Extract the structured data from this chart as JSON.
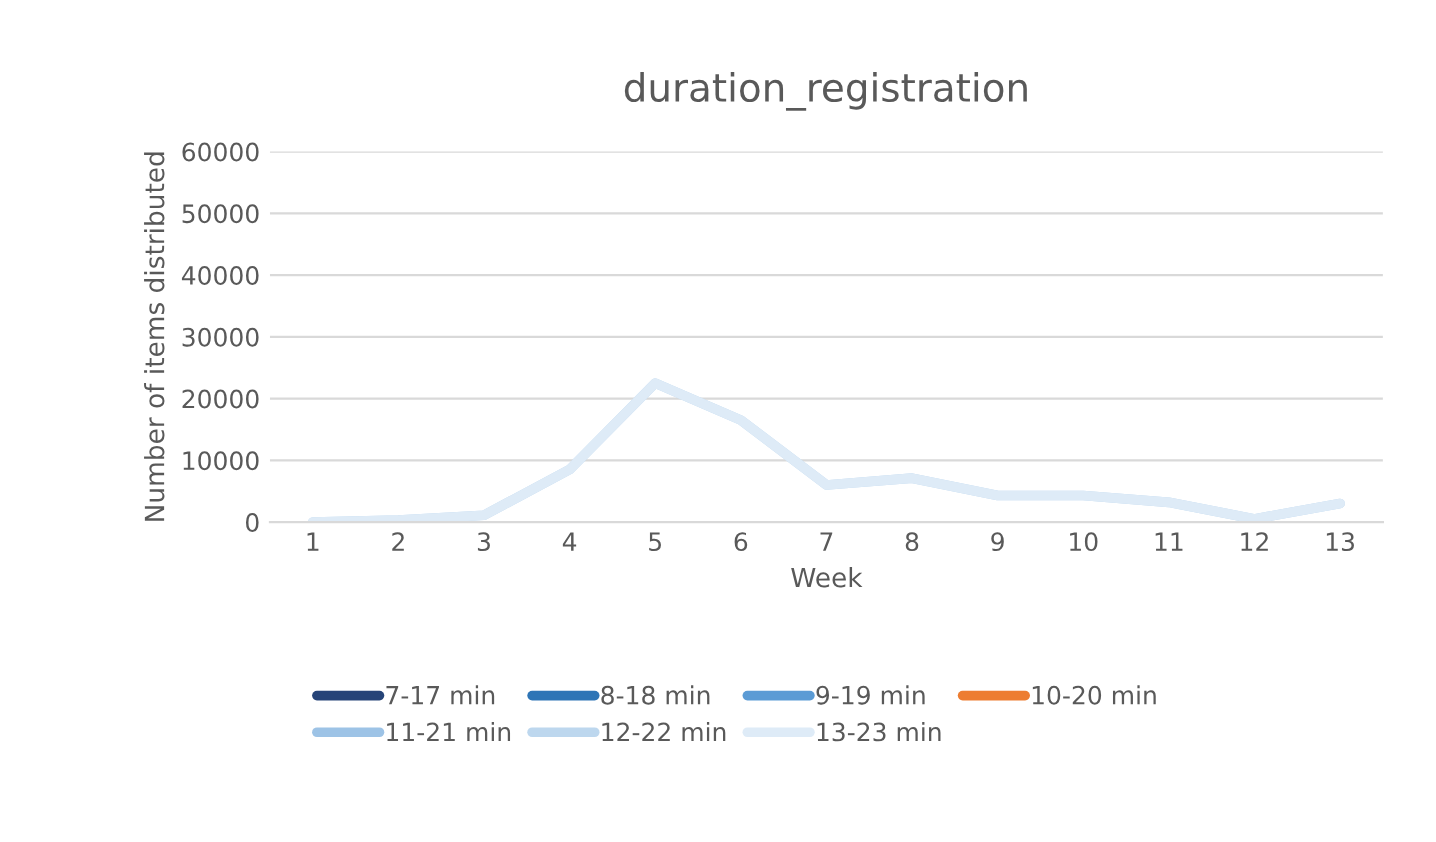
{
  "chart_data": {
    "type": "line",
    "title": "duration_registration",
    "xlabel": "Week",
    "ylabel": "Number of items distributed",
    "categories": [
      "1",
      "2",
      "3",
      "4",
      "5",
      "6",
      "7",
      "8",
      "9",
      "10",
      "11",
      "12",
      "13"
    ],
    "series": [
      {
        "name": "7-17 min",
        "color": "#264478",
        "values": [
          null,
          null,
          null,
          null,
          null,
          null,
          null,
          null,
          null,
          null,
          null,
          null,
          null
        ]
      },
      {
        "name": "8-18 min",
        "color": "#2e75b6",
        "values": [
          null,
          null,
          null,
          null,
          null,
          null,
          null,
          null,
          null,
          null,
          null,
          null,
          null
        ]
      },
      {
        "name": "9-19 min",
        "color": "#5b9bd5",
        "values": [
          null,
          null,
          null,
          null,
          null,
          null,
          null,
          null,
          null,
          null,
          null,
          null,
          null
        ]
      },
      {
        "name": "10-20 min",
        "color": "#ed7d31",
        "values": [
          null,
          null,
          null,
          null,
          null,
          null,
          null,
          null,
          null,
          null,
          null,
          null,
          null
        ]
      },
      {
        "name": "11-21 min",
        "color": "#9dc3e6",
        "values": [
          null,
          null,
          null,
          null,
          null,
          null,
          null,
          null,
          null,
          null,
          null,
          null,
          null
        ]
      },
      {
        "name": "12-22 min",
        "color": "#bdd7ee",
        "values": [
          0,
          300,
          1100,
          8500,
          22500,
          16500,
          6000,
          7100,
          4300,
          4300,
          3200,
          500,
          3000
        ]
      },
      {
        "name": "13-23 min",
        "color": "#deebf7",
        "values": [
          0,
          300,
          1100,
          8500,
          22500,
          16500,
          6000,
          7100,
          4300,
          4300,
          3200,
          500,
          3000
        ]
      }
    ],
    "ylim": [
      0,
      60000
    ],
    "yticks": [
      0,
      10000,
      20000,
      30000,
      40000,
      50000,
      60000
    ],
    "grid": "y",
    "legend": "bottom",
    "marker": "none",
    "line_style": "solid"
  }
}
